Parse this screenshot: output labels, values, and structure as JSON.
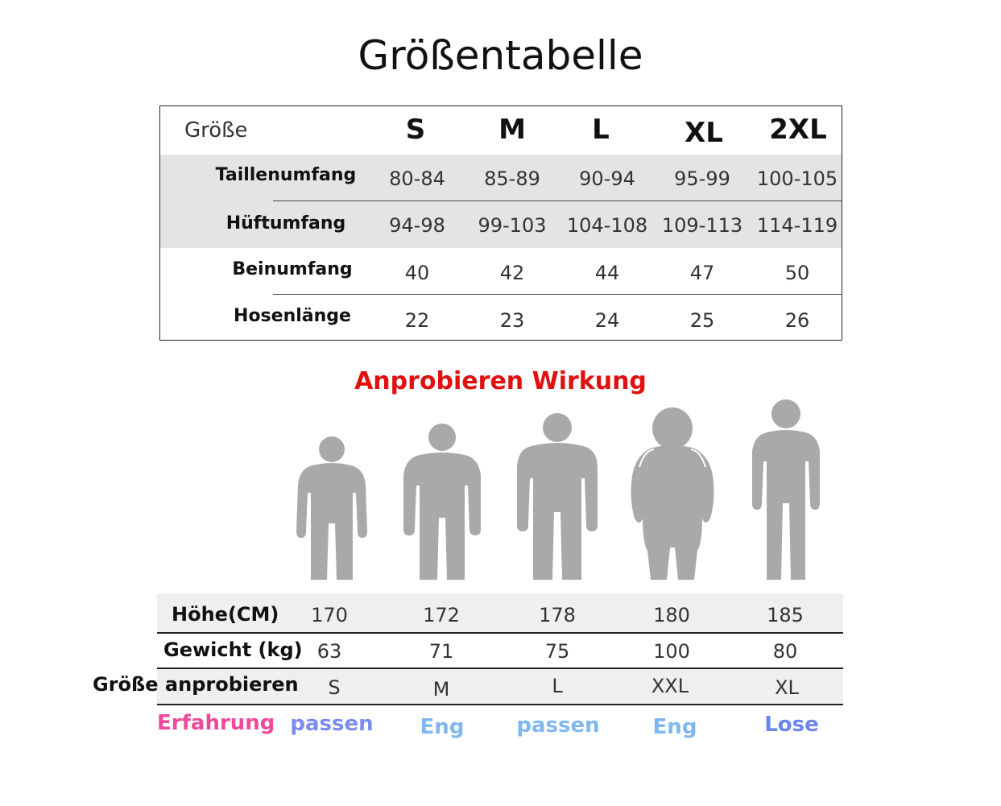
{
  "title": "Größentabelle",
  "size_table": {
    "header_label": "Größe",
    "sizes": [
      "S",
      "M",
      "L",
      "XL",
      "2XL"
    ],
    "rows": [
      {
        "label": "Taillenumfang",
        "values": [
          "80-84",
          "85-89",
          "90-94",
          "95-99",
          "100-105"
        ]
      },
      {
        "label": "Hüftumfang",
        "values": [
          "94-98",
          "99-103",
          "104-108",
          "109-113",
          "114-119"
        ]
      },
      {
        "label": "Beinumfang",
        "values": [
          "40",
          "42",
          "44",
          "47",
          "50"
        ]
      },
      {
        "label": "Hosenlänge",
        "values": [
          "22",
          "23",
          "24",
          "25",
          "26"
        ]
      }
    ]
  },
  "try_on": {
    "title": "Anprobieren Wirkung",
    "title_color": "#e01010",
    "figure_color": "#a9a9a9",
    "figures": [
      "person-slim-icon",
      "person-average-icon",
      "person-broad-icon",
      "person-heavy-icon",
      "person-tall-icon"
    ],
    "rows": [
      {
        "label": "Höhe(CM)",
        "values": [
          "170",
          "172",
          "178",
          "180",
          "185"
        ]
      },
      {
        "label": "Gewicht (kg)",
        "values": [
          "63",
          "71",
          "75",
          "100",
          "80"
        ]
      },
      {
        "label": "Größe anprobieren",
        "values": [
          "S",
          "M",
          "L",
          "XXL",
          "XL"
        ]
      }
    ],
    "experience": {
      "label": "Erfahrung",
      "label_color": "#ee4a9a",
      "values": [
        "passen",
        "Eng",
        "passen",
        "Eng",
        "Lose"
      ],
      "colors": [
        "#7a8cf0",
        "#7fb8f0",
        "#7fb8f0",
        "#7fb8f0",
        "#6a86ee"
      ]
    }
  }
}
